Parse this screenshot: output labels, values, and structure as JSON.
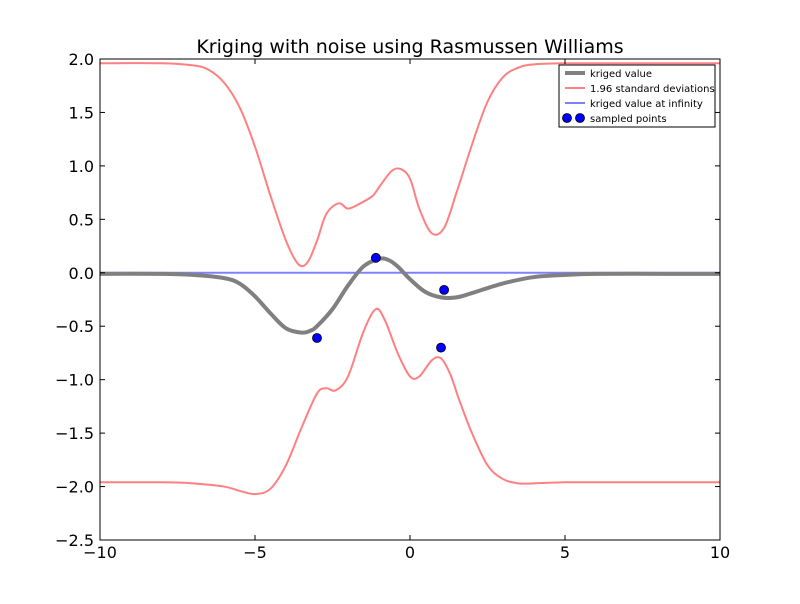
{
  "chart_data": {
    "type": "line",
    "title": "Kriging with noise using Rasmussen Williams",
    "xlabel": "",
    "ylabel": "",
    "xlim": [
      -10,
      10
    ],
    "ylim": [
      -2.5,
      2.0
    ],
    "xticks": [
      -10,
      -5,
      0,
      5,
      10
    ],
    "xtick_labels": [
      "−10",
      "−5",
      "0",
      "5",
      "10"
    ],
    "yticks": [
      -2.5,
      -2.0,
      -1.5,
      -1.0,
      -0.5,
      0.0,
      0.5,
      1.0,
      1.5,
      2.0
    ],
    "ytick_labels": [
      "−2.5",
      "−2.0",
      "−1.5",
      "−1.0",
      "−0.5",
      "0.0",
      "0.5",
      "1.0",
      "1.5",
      "2.0"
    ],
    "grid": false,
    "legend_position": "top-right",
    "series": [
      {
        "name": "kriged value",
        "kind": "line",
        "color": "#808080",
        "x": [
          -10,
          -8,
          -7,
          -6,
          -5.5,
          -5,
          -4.5,
          -4,
          -3.5,
          -3.2,
          -3,
          -2.5,
          -2,
          -1.5,
          -1,
          -0.7,
          -0.4,
          0,
          0.5,
          1,
          1.5,
          2,
          3,
          4,
          5,
          6,
          8,
          10
        ],
        "y": [
          -0.01,
          -0.01,
          -0.02,
          -0.05,
          -0.1,
          -0.22,
          -0.38,
          -0.52,
          -0.56,
          -0.54,
          -0.5,
          -0.34,
          -0.12,
          0.06,
          0.13,
          0.12,
          0.06,
          -0.06,
          -0.18,
          -0.23,
          -0.23,
          -0.19,
          -0.1,
          -0.04,
          -0.02,
          -0.01,
          -0.01,
          -0.01
        ]
      },
      {
        "name": "1.96 standard deviations",
        "kind": "line",
        "color": "#ff8080",
        "x": [
          -10,
          -8,
          -7,
          -6.5,
          -6,
          -5.5,
          -5,
          -4.5,
          -4,
          -3.6,
          -3.3,
          -3,
          -2.7,
          -2.3,
          -2,
          -1.6,
          -1.2,
          -1,
          -0.6,
          -0.3,
          0,
          0.3,
          0.7,
          1.1,
          1.5,
          2,
          2.5,
          3,
          3.5,
          4,
          5,
          6,
          8,
          10
        ],
        "y": [
          1.96,
          1.96,
          1.94,
          1.9,
          1.78,
          1.55,
          1.18,
          0.72,
          0.3,
          0.08,
          0.1,
          0.3,
          0.55,
          0.65,
          0.6,
          0.65,
          0.72,
          0.8,
          0.95,
          0.97,
          0.88,
          0.6,
          0.37,
          0.42,
          0.75,
          1.2,
          1.6,
          1.83,
          1.92,
          1.95,
          1.96,
          1.96,
          1.96,
          1.96
        ]
      },
      {
        "name": "",
        "kind": "line",
        "color": "#ff8080",
        "x": [
          -10,
          -8,
          -7,
          -6,
          -5.5,
          -5,
          -4.5,
          -4,
          -3.5,
          -3,
          -2.7,
          -2.4,
          -2,
          -1.5,
          -1.1,
          -0.8,
          -0.4,
          0,
          0.3,
          0.7,
          1,
          1.3,
          1.6,
          2,
          2.5,
          3,
          3.5,
          4,
          5,
          6,
          8,
          10
        ],
        "y": [
          -1.96,
          -1.96,
          -1.97,
          -2.0,
          -2.04,
          -2.07,
          -2.02,
          -1.8,
          -1.45,
          -1.13,
          -1.08,
          -1.1,
          -0.97,
          -0.55,
          -0.34,
          -0.45,
          -0.75,
          -0.97,
          -0.97,
          -0.82,
          -0.8,
          -0.95,
          -1.2,
          -1.5,
          -1.8,
          -1.93,
          -1.97,
          -1.97,
          -1.96,
          -1.96,
          -1.96,
          -1.96
        ]
      },
      {
        "name": "kriged value at infinity",
        "kind": "line",
        "color": "#8080ff",
        "x": [
          -10,
          10
        ],
        "y": [
          0.0,
          0.0
        ]
      },
      {
        "name": "sampled points",
        "kind": "scatter",
        "color": "#0000ff",
        "x": [
          -3.0,
          -1.1,
          1.1,
          1.0
        ],
        "y": [
          -0.61,
          0.14,
          -0.16,
          -0.7
        ]
      }
    ]
  }
}
